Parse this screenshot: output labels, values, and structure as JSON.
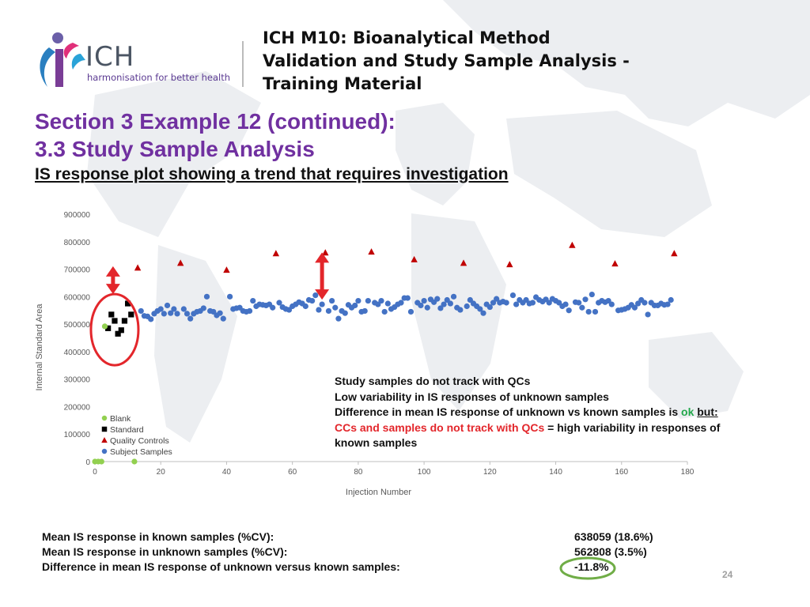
{
  "header": {
    "logo_text": "ICH",
    "logo_tagline": "harmonisation for better health",
    "doc_title_lines": [
      "ICH M10: Bioanalytical Method",
      "Validation and Study Sample Analysis -",
      "Training Material"
    ]
  },
  "slide": {
    "section_line1": "Section 3 Example 12 (continued):",
    "section_line2": "3.3 Study Sample Analysis",
    "subtitle": "IS response plot showing a trend that requires investigation",
    "page_number": "24"
  },
  "notes": {
    "line1": "Study samples do not track with QCs",
    "line2": "Low variability in IS responses of unknown samples",
    "line3_prefix": "Difference in mean IS response of unknown vs known samples is ",
    "line3_ok": "ok",
    "line3_but": "but:",
    "line4_red": "CCs and samples do not track with QCs",
    "line4_rest": " = high variability in responses of",
    "line5": "known samples"
  },
  "stats": {
    "label1": "Mean IS response in known samples (%CV):",
    "value1": "638059 (18.6%)",
    "label2": "Mean IS response in unknown samples (%CV):",
    "value2": "562808 (3.5%)",
    "label3": "Difference in mean IS response of unknown versus known samples:",
    "value3": "-11.8%"
  },
  "colors": {
    "blank": "#92d050",
    "standard": "#000000",
    "qc": "#c00000",
    "subject": "#4472c4",
    "section": "#7030a0",
    "annotation_red": "#e3262b",
    "annotation_circle_green": "#70ad47"
  },
  "chart_data": {
    "type": "scatter",
    "xlabel": "Injection Number",
    "ylabel": "Internal Standard Area",
    "xlim": [
      0,
      180
    ],
    "ylim": [
      0,
      900000
    ],
    "x_ticks": [
      "0",
      "20",
      "40",
      "60",
      "80",
      "100",
      "120",
      "140",
      "160",
      "180"
    ],
    "y_ticks": [
      "0",
      "100000",
      "200000",
      "300000",
      "400000",
      "500000",
      "600000",
      "700000",
      "800000",
      "900000"
    ],
    "legend_position": "bottom-left",
    "series": [
      {
        "name": "Blank",
        "marker": "circle",
        "points": [
          [
            0,
            0
          ],
          [
            1,
            0
          ],
          [
            2,
            0
          ],
          [
            3,
            492000
          ],
          [
            12,
            0
          ]
        ]
      },
      {
        "name": "Standard",
        "marker": "square",
        "points": [
          [
            4,
            485000
          ],
          [
            5,
            535000
          ],
          [
            6,
            512000
          ],
          [
            7,
            465000
          ],
          [
            8,
            478000
          ],
          [
            9,
            512000
          ],
          [
            10,
            575000
          ],
          [
            11,
            535000
          ]
        ]
      },
      {
        "name": "Quality Controls",
        "marker": "triangle",
        "points": [
          [
            13,
            705000
          ],
          [
            26,
            722000
          ],
          [
            40,
            697000
          ],
          [
            55,
            757000
          ],
          [
            70,
            760000
          ],
          [
            84,
            763000
          ],
          [
            97,
            735000
          ],
          [
            112,
            722000
          ],
          [
            126,
            717000
          ],
          [
            145,
            787000
          ],
          [
            158,
            720000
          ],
          [
            176,
            757000
          ]
        ]
      },
      {
        "name": "Subject Samples",
        "marker": "circle",
        "points": [
          [
            14,
            548000
          ],
          [
            15,
            530000
          ],
          [
            16,
            528000
          ],
          [
            17,
            518000
          ],
          [
            18,
            538000
          ],
          [
            19,
            548000
          ],
          [
            20,
            555000
          ],
          [
            21,
            538000
          ],
          [
            22,
            568000
          ],
          [
            23,
            540000
          ],
          [
            24,
            555000
          ],
          [
            25,
            538000
          ],
          [
            27,
            555000
          ],
          [
            28,
            538000
          ],
          [
            29,
            520000
          ],
          [
            30,
            538000
          ],
          [
            31,
            545000
          ],
          [
            32,
            548000
          ],
          [
            33,
            558000
          ],
          [
            34,
            600000
          ],
          [
            35,
            548000
          ],
          [
            36,
            545000
          ],
          [
            37,
            532000
          ],
          [
            38,
            540000
          ],
          [
            39,
            520000
          ],
          [
            41,
            600000
          ],
          [
            42,
            555000
          ],
          [
            43,
            558000
          ],
          [
            44,
            560000
          ],
          [
            45,
            548000
          ],
          [
            46,
            545000
          ],
          [
            47,
            548000
          ],
          [
            48,
            585000
          ],
          [
            49,
            565000
          ],
          [
            50,
            572000
          ],
          [
            51,
            570000
          ],
          [
            52,
            568000
          ],
          [
            53,
            572000
          ],
          [
            54,
            560000
          ],
          [
            56,
            578000
          ],
          [
            57,
            562000
          ],
          [
            58,
            555000
          ],
          [
            59,
            552000
          ],
          [
            60,
            565000
          ],
          [
            61,
            572000
          ],
          [
            62,
            580000
          ],
          [
            63,
            575000
          ],
          [
            64,
            565000
          ],
          [
            65,
            588000
          ],
          [
            66,
            585000
          ],
          [
            67,
            605000
          ],
          [
            68,
            552000
          ],
          [
            69,
            572000
          ],
          [
            71,
            548000
          ],
          [
            72,
            585000
          ],
          [
            73,
            560000
          ],
          [
            74,
            520000
          ],
          [
            75,
            548000
          ],
          [
            76,
            540000
          ],
          [
            77,
            570000
          ],
          [
            78,
            560000
          ],
          [
            79,
            568000
          ],
          [
            80,
            585000
          ],
          [
            81,
            545000
          ],
          [
            82,
            548000
          ],
          [
            83,
            585000
          ],
          [
            85,
            578000
          ],
          [
            86,
            572000
          ],
          [
            87,
            585000
          ],
          [
            88,
            545000
          ],
          [
            89,
            575000
          ],
          [
            90,
            555000
          ],
          [
            91,
            562000
          ],
          [
            92,
            572000
          ],
          [
            93,
            578000
          ],
          [
            94,
            595000
          ],
          [
            95,
            595000
          ],
          [
            96,
            545000
          ],
          [
            98,
            578000
          ],
          [
            99,
            568000
          ],
          [
            100,
            585000
          ],
          [
            101,
            560000
          ],
          [
            102,
            590000
          ],
          [
            103,
            580000
          ],
          [
            104,
            592000
          ],
          [
            105,
            558000
          ],
          [
            106,
            572000
          ],
          [
            107,
            588000
          ],
          [
            108,
            575000
          ],
          [
            109,
            600000
          ],
          [
            110,
            560000
          ],
          [
            111,
            552000
          ],
          [
            113,
            565000
          ],
          [
            114,
            588000
          ],
          [
            115,
            575000
          ],
          [
            116,
            565000
          ],
          [
            117,
            555000
          ],
          [
            118,
            540000
          ],
          [
            119,
            572000
          ],
          [
            120,
            562000
          ],
          [
            121,
            578000
          ],
          [
            122,
            592000
          ],
          [
            123,
            578000
          ],
          [
            124,
            582000
          ],
          [
            125,
            578000
          ],
          [
            127,
            605000
          ],
          [
            128,
            572000
          ],
          [
            129,
            588000
          ],
          [
            130,
            578000
          ],
          [
            131,
            588000
          ],
          [
            132,
            575000
          ],
          [
            133,
            578000
          ],
          [
            134,
            598000
          ],
          [
            135,
            588000
          ],
          [
            136,
            582000
          ],
          [
            137,
            590000
          ],
          [
            138,
            578000
          ],
          [
            139,
            592000
          ],
          [
            140,
            585000
          ],
          [
            141,
            578000
          ],
          [
            142,
            565000
          ],
          [
            143,
            572000
          ],
          [
            144,
            550000
          ],
          [
            146,
            580000
          ],
          [
            147,
            578000
          ],
          [
            148,
            560000
          ],
          [
            149,
            590000
          ],
          [
            150,
            545000
          ],
          [
            151,
            608000
          ],
          [
            152,
            545000
          ],
          [
            153,
            578000
          ],
          [
            154,
            585000
          ],
          [
            155,
            580000
          ],
          [
            156,
            585000
          ],
          [
            157,
            572000
          ],
          [
            159,
            550000
          ],
          [
            160,
            552000
          ],
          [
            161,
            555000
          ],
          [
            162,
            560000
          ],
          [
            163,
            570000
          ],
          [
            164,
            560000
          ],
          [
            165,
            575000
          ],
          [
            166,
            588000
          ],
          [
            167,
            578000
          ],
          [
            168,
            535000
          ],
          [
            169,
            578000
          ],
          [
            170,
            568000
          ],
          [
            171,
            568000
          ],
          [
            172,
            575000
          ],
          [
            173,
            570000
          ],
          [
            174,
            572000
          ],
          [
            175,
            588000
          ]
        ]
      }
    ]
  }
}
